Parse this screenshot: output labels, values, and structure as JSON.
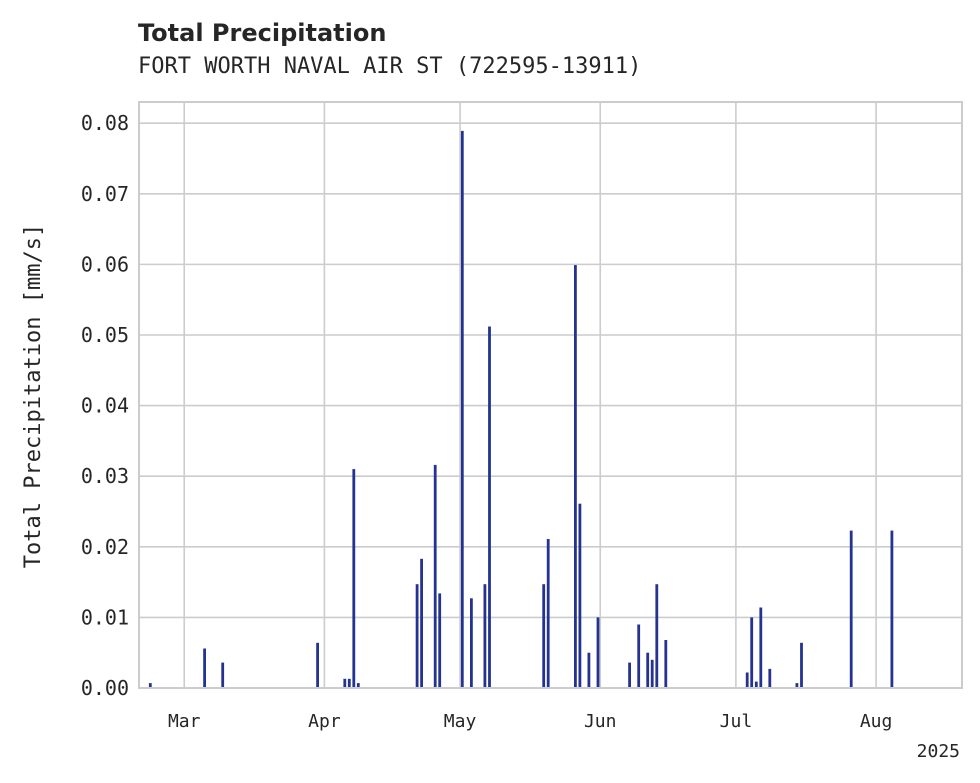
{
  "chart_data": {
    "type": "bar",
    "title": "Total Precipitation",
    "subtitle": "FORT WORTH NAVAL AIR ST (722595-13911)",
    "ylabel": "Total Precipitation [mm/s]",
    "xlabel": "",
    "ylim": [
      0,
      0.083
    ],
    "xlim": [
      "2025-02-19",
      "2025-08-20"
    ],
    "yticks": [
      "0.00",
      "0.01",
      "0.02",
      "0.03",
      "0.04",
      "0.05",
      "0.06",
      "0.07",
      "0.08"
    ],
    "xticks": [
      {
        "date": "2025-03-01",
        "label": "Mar"
      },
      {
        "date": "2025-04-01",
        "label": "Apr"
      },
      {
        "date": "2025-05-01",
        "label": "May"
      },
      {
        "date": "2025-06-01",
        "label": "Jun"
      },
      {
        "date": "2025-07-01",
        "label": "Jul"
      },
      {
        "date": "2025-08-01",
        "label": "Aug"
      }
    ],
    "year_label": "2025",
    "grid": true,
    "bar_color": "#24338f",
    "series": [
      {
        "x": [
          "2025-02-21",
          "2025-03-05",
          "2025-03-09",
          "2025-03-30",
          "2025-04-05",
          "2025-04-06",
          "2025-04-07",
          "2025-04-08",
          "2025-04-21",
          "2025-04-22",
          "2025-04-25",
          "2025-04-26",
          "2025-05-01",
          "2025-05-03",
          "2025-05-06",
          "2025-05-07",
          "2025-05-19",
          "2025-05-20",
          "2025-05-26",
          "2025-05-27",
          "2025-05-29",
          "2025-05-31",
          "2025-06-07",
          "2025-06-09",
          "2025-06-11",
          "2025-06-12",
          "2025-06-13",
          "2025-06-15",
          "2025-07-03",
          "2025-07-04",
          "2025-07-05",
          "2025-07-06",
          "2025-07-08",
          "2025-07-14",
          "2025-07-15",
          "2025-07-26",
          "2025-08-04"
        ],
        "values": [
          0.0007,
          0.0056,
          0.0036,
          0.0064,
          0.0013,
          0.0013,
          0.031,
          0.0007,
          0.0147,
          0.0183,
          0.0316,
          0.0134,
          0.0789,
          0.0127,
          0.0147,
          0.0512,
          0.0147,
          0.0211,
          0.0599,
          0.0261,
          0.005,
          0.01,
          0.0036,
          0.009,
          0.005,
          0.004,
          0.0147,
          0.0068,
          0.0022,
          0.01,
          0.0009,
          0.0114,
          0.0027,
          0.0007,
          0.0064,
          0.0223,
          0.0223
        ]
      }
    ]
  }
}
